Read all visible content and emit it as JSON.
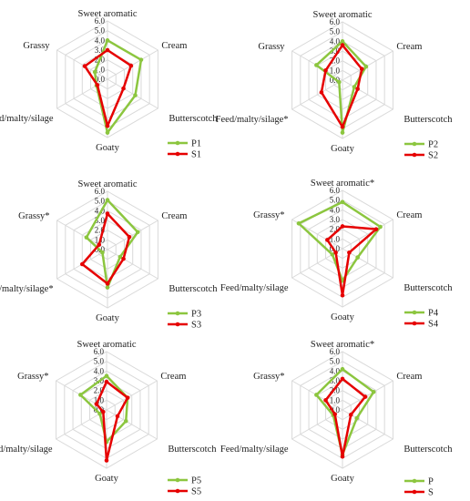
{
  "chart_data": [
    {
      "type": "radar",
      "axes": [
        "Sweet aromatic",
        "Cream",
        "Butterscotch",
        "Goaty",
        "Feed/malty/silage",
        "Grassy"
      ],
      "rlim": [
        0,
        6
      ],
      "ticks": [
        "0.0",
        "1.0",
        "2.0",
        "3.0",
        "4.0",
        "5.0",
        "6.0"
      ],
      "series": [
        {
          "name": "P1",
          "color": "#8cc63f",
          "values": [
            4.0,
            4.0,
            3.3,
            5.5,
            1.3,
            1.5
          ]
        },
        {
          "name": "S1",
          "color": "#e60000",
          "values": [
            3.0,
            2.8,
            1.9,
            4.8,
            1.2,
            2.7
          ]
        }
      ]
    },
    {
      "type": "radar",
      "axes": [
        "Sweet aromatic",
        "Cream",
        "Butterscotch",
        "Goaty",
        "Feed/malty/silage*",
        "Grassy"
      ],
      "rlim": [
        0,
        6
      ],
      "ticks": [
        "0.0",
        "1.0",
        "2.0",
        "3.0",
        "4.0",
        "5.0",
        "6.0"
      ],
      "series": [
        {
          "name": "P2",
          "color": "#8cc63f",
          "values": [
            4.0,
            2.8,
            1.4,
            5.4,
            0.4,
            3.1
          ]
        },
        {
          "name": "S2",
          "color": "#e60000",
          "values": [
            3.6,
            2.3,
            1.8,
            4.8,
            2.5,
            2.0
          ]
        }
      ]
    },
    {
      "type": "radar",
      "axes": [
        "Sweet aromatic",
        "Cream",
        "Butterscotch",
        "Goaty",
        "Feed/malty/silage*",
        "Grassy*"
      ],
      "rlim": [
        0,
        6
      ],
      "ticks": [
        "0.0",
        "1.0",
        "2.0",
        "3.0",
        "4.0",
        "5.0",
        "6.0"
      ],
      "series": [
        {
          "name": "P3",
          "color": "#8cc63f",
          "values": [
            5.1,
            3.6,
            1.5,
            3.9,
            0.6,
            2.5
          ]
        },
        {
          "name": "S3",
          "color": "#e60000",
          "values": [
            3.7,
            2.6,
            1.9,
            3.5,
            3.0,
            1.0
          ]
        }
      ]
    },
    {
      "type": "radar",
      "axes": [
        "Sweet aromatic*",
        "Cream",
        "Butterscotch",
        "Goaty",
        "Feed/malty/silage",
        "Grassy*"
      ],
      "rlim": [
        0,
        6
      ],
      "ticks": [
        "0.0",
        "1.0",
        "2.0",
        "3.0",
        "4.0",
        "5.0",
        "6.0"
      ],
      "series": [
        {
          "name": "P4",
          "color": "#8cc63f",
          "values": [
            4.8,
            4.5,
            1.8,
            3.3,
            1.2,
            5.2
          ]
        },
        {
          "name": "S4",
          "color": "#e60000",
          "values": [
            2.3,
            4.0,
            0.8,
            4.8,
            0.8,
            1.8
          ]
        }
      ]
    },
    {
      "type": "radar",
      "axes": [
        "Sweet aromatic",
        "Cream",
        "Butterscotch",
        "Goaty",
        "Feed/malty/silage",
        "Grassy*"
      ],
      "rlim": [
        0,
        6
      ],
      "ticks": [
        "0.0",
        "1.0",
        "2.0",
        "3.0",
        "4.0",
        "5.0",
        "6.0"
      ],
      "series": [
        {
          "name": "P5",
          "color": "#8cc63f",
          "values": [
            3.5,
            2.5,
            2.3,
            3.3,
            0.8,
            3.1
          ]
        },
        {
          "name": "S5",
          "color": "#e60000",
          "values": [
            2.9,
            2.5,
            1.3,
            5.2,
            0.4,
            1.2
          ]
        }
      ]
    },
    {
      "type": "radar",
      "axes": [
        "Sweet aromatic*",
        "Cream",
        "Butterscotch",
        "Goaty",
        "Feed/malty/silage",
        "Grassy*"
      ],
      "rlim": [
        0,
        6
      ],
      "ticks": [
        "0.0",
        "1.0",
        "2.0",
        "3.0",
        "4.0",
        "5.0",
        "6.0"
      ],
      "series": [
        {
          "name": "P",
          "color": "#8cc63f",
          "values": [
            4.2,
            3.7,
            1.7,
            4.6,
            1.1,
            3.1
          ]
        },
        {
          "name": "S",
          "color": "#e60000",
          "values": [
            3.2,
            2.7,
            1.0,
            4.8,
            0.9,
            2.0
          ]
        }
      ]
    }
  ]
}
